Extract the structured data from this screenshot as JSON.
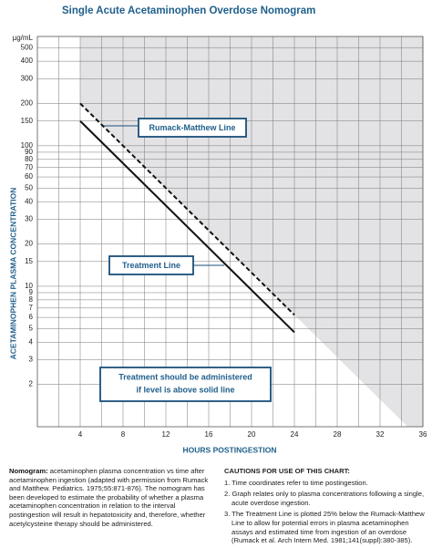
{
  "chart_data": {
    "type": "line",
    "title": "Single Acute Acetaminophen Overdose Nomogram",
    "y_unit": "µg/mL",
    "xlabel": "HOURS POSTINGESTION",
    "ylabel": "ACETAMINOPHEN PLASMA CONCENTRATION",
    "log_y": true,
    "grid": true,
    "xlim": [
      0,
      36
    ],
    "xticks": [
      4,
      8,
      12,
      16,
      20,
      24,
      28,
      32,
      36
    ],
    "xminor": [
      2,
      6,
      10,
      14,
      18,
      22,
      26,
      30,
      34
    ],
    "ylim": [
      1,
      600
    ],
    "yticks": [
      2,
      3,
      4,
      5,
      6,
      7,
      8,
      9,
      10,
      15,
      20,
      30,
      40,
      50,
      60,
      70,
      80,
      90,
      100,
      150,
      200,
      300,
      400,
      500
    ],
    "series": [
      {
        "name": "Rumack-Matthew Line",
        "color": "#111111",
        "dash": true,
        "x": [
          4,
          24
        ],
        "values": [
          200,
          6.25
        ]
      },
      {
        "name": "Treatment Line",
        "color": "#111111",
        "dash": false,
        "x": [
          4,
          24
        ],
        "values": [
          150,
          4.7
        ]
      }
    ],
    "annotation": [
      "Treatment should be administered",
      "if level is above solid line"
    ]
  },
  "notes": {
    "left_label": "Nomogram:",
    "left_text": "acetaminophen plasma concentration vs time after acetaminophen ingestion (adapted with permission from Rumack and Matthew. Pediatrics. 1975;55:871-876). The nomogram has been developed to estimate the probability of whether a plasma acetaminophen concentration in relation to the interval postingestion will result in hepatotoxicity and, therefore, whether acetylcysteine therapy should be administered.",
    "cautions_title": "CAUTIONS FOR USE OF THIS CHART:",
    "items": [
      "1. Time coordinates refer to time postingestion.",
      "2. Graph relates only to plasma concentrations following a single, acute overdose ingestion.",
      "3. The Treatment Line is plotted 25% below the Rumack-Matthew Line to allow for potential errors in plasma acetaminophen assays and estimated time from ingestion of an overdose (Rumack et al. Arch Intern Med. 1981;141(suppl):380-385)."
    ]
  }
}
